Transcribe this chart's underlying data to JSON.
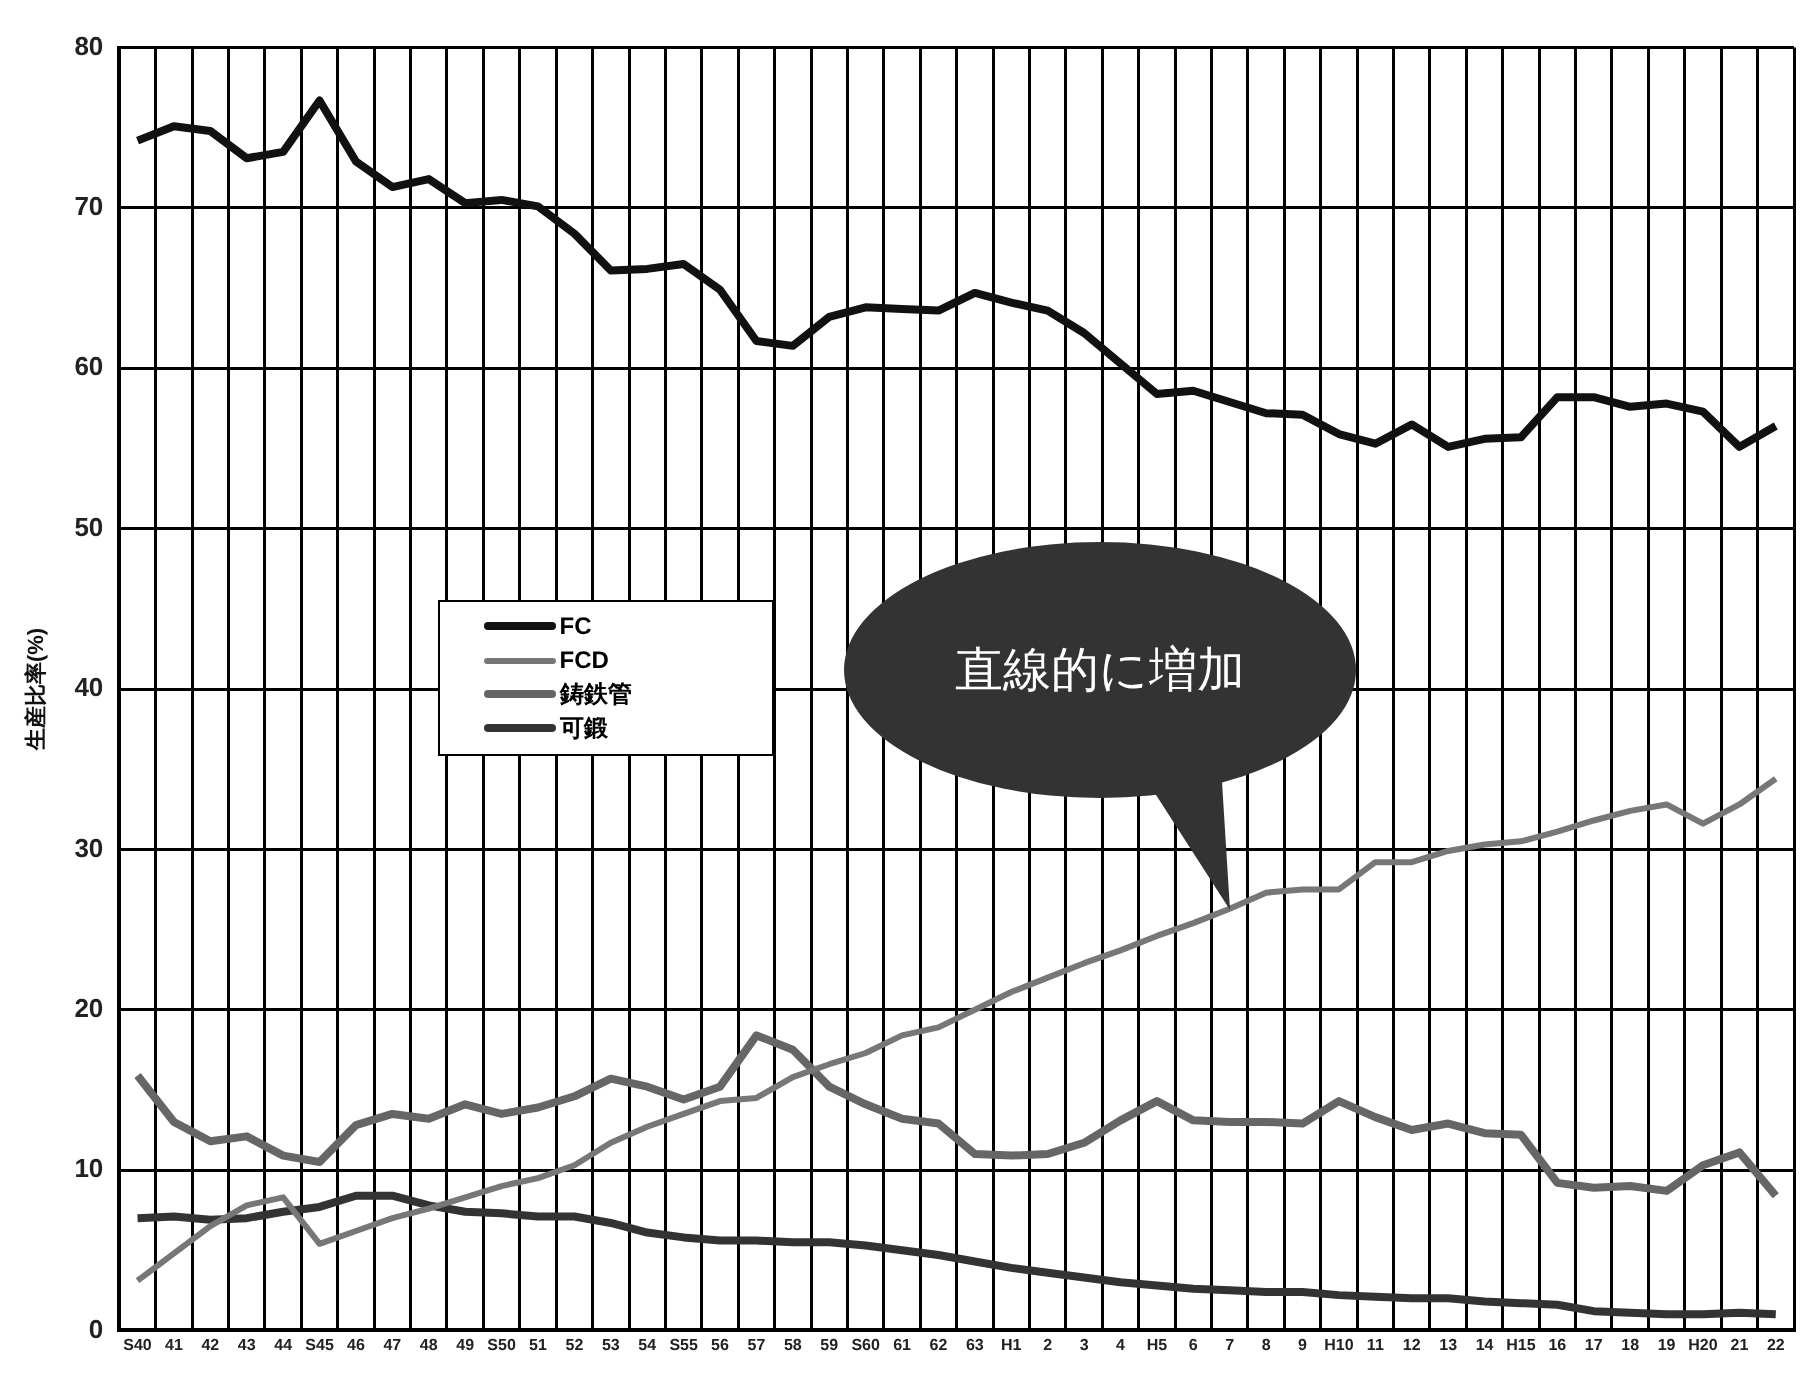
{
  "chart_data": {
    "type": "line",
    "ylabel": "生産比率(%)",
    "categories": [
      "S40",
      "41",
      "42",
      "43",
      "44",
      "S45",
      "46",
      "47",
      "48",
      "49",
      "S50",
      "51",
      "52",
      "53",
      "54",
      "S55",
      "56",
      "57",
      "58",
      "59",
      "S60",
      "61",
      "62",
      "63",
      "H1",
      "2",
      "3",
      "4",
      "H5",
      "6",
      "7",
      "8",
      "9",
      "H10",
      "11",
      "12",
      "13",
      "14",
      "H15",
      "16",
      "17",
      "18",
      "19",
      "H20",
      "21",
      "22"
    ],
    "series": [
      {
        "name": "FC",
        "color": "#111111",
        "values": [
          74.2,
          75.1,
          74.8,
          73.1,
          73.5,
          76.7,
          72.9,
          71.3,
          71.8,
          70.3,
          70.5,
          70.1,
          68.4,
          66.1,
          66.2,
          66.5,
          64.9,
          61.7,
          61.4,
          63.2,
          63.8,
          63.7,
          63.6,
          64.7,
          64.1,
          63.6,
          62.2,
          60.3,
          58.4,
          58.6,
          57.9,
          57.2,
          57.1,
          55.9,
          55.3,
          56.5,
          55.1,
          55.6,
          55.7,
          58.2,
          58.2,
          57.6,
          57.8,
          57.3,
          55.1,
          56.4
        ]
      },
      {
        "name": "FCD",
        "color": "#777777",
        "values": [
          3.1,
          4.8,
          6.5,
          7.8,
          8.3,
          5.4,
          6.2,
          7.0,
          7.6,
          8.3,
          9.0,
          9.5,
          10.3,
          11.7,
          12.7,
          13.5,
          14.3,
          14.5,
          15.8,
          16.6,
          17.3,
          18.4,
          18.9,
          20.0,
          21.1,
          22.0,
          22.9,
          23.7,
          24.6,
          25.4,
          26.3,
          27.3,
          27.5,
          27.5,
          29.2,
          29.2,
          29.9,
          30.3,
          30.5,
          31.1,
          31.8,
          32.4,
          32.8,
          31.6,
          32.8,
          34.4
        ]
      },
      {
        "name": "鋳鉄管",
        "color": "#666666",
        "values": [
          15.9,
          13.0,
          11.8,
          12.1,
          10.9,
          10.5,
          12.8,
          13.5,
          13.2,
          14.1,
          13.5,
          13.9,
          14.6,
          15.7,
          15.2,
          14.4,
          15.2,
          18.4,
          17.5,
          15.2,
          14.1,
          13.2,
          12.9,
          11.0,
          10.9,
          11.0,
          11.7,
          13.1,
          14.3,
          13.1,
          13.0,
          13.0,
          12.9,
          14.3,
          13.3,
          12.5,
          12.9,
          12.3,
          12.2,
          9.2,
          8.9,
          9.0,
          8.7,
          10.3,
          11.1,
          8.4
        ]
      },
      {
        "name": "可鍛",
        "color": "#333333",
        "values": [
          7.0,
          7.1,
          6.9,
          7.0,
          7.4,
          7.7,
          8.4,
          8.4,
          7.8,
          7.4,
          7.3,
          7.1,
          7.1,
          6.7,
          6.1,
          5.8,
          5.6,
          5.6,
          5.5,
          5.5,
          5.3,
          5.0,
          4.7,
          4.3,
          3.9,
          3.6,
          3.3,
          3.0,
          2.8,
          2.6,
          2.5,
          2.4,
          2.4,
          2.2,
          2.1,
          2.0,
          2.0,
          1.8,
          1.7,
          1.6,
          1.2,
          1.1,
          1.0,
          1.0,
          1.1,
          1.0
        ]
      }
    ],
    "ylim": [
      0,
      80
    ],
    "yticks": [
      0,
      10,
      20,
      30,
      40,
      50,
      60,
      70,
      80
    ],
    "grid": true,
    "legend": "left",
    "marker": "none",
    "line_style": "solid",
    "annotations": [
      "直線的に増加"
    ]
  }
}
